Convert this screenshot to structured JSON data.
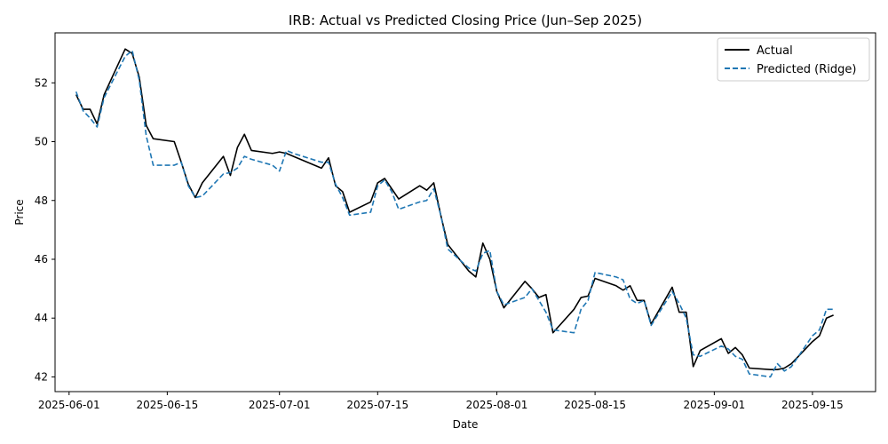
{
  "chart_data": {
    "type": "line",
    "title": "IRB: Actual vs Predicted Closing Price (Jun–Sep 2025)",
    "xlabel": "Date",
    "ylabel": "Price",
    "x_ticks": [
      "2025-06-01",
      "2025-06-15",
      "2025-07-01",
      "2025-07-15",
      "2025-08-01",
      "2025-08-15",
      "2025-09-01",
      "2025-09-15"
    ],
    "y_ticks": [
      42,
      44,
      46,
      48,
      50,
      52
    ],
    "xlim": [
      "2025-05-30",
      "2025-09-24"
    ],
    "ylim": [
      41.5,
      53.7
    ],
    "grid": false,
    "legend_position": "top-right",
    "colors": {
      "actual": "#000000",
      "predicted": "#1f77b4"
    },
    "series": [
      {
        "name": "Actual",
        "style": "solid",
        "points": [
          [
            "2025-06-02",
            51.6
          ],
          [
            "2025-06-03",
            51.1
          ],
          [
            "2025-06-04",
            51.1
          ],
          [
            "2025-06-05",
            50.6
          ],
          [
            "2025-06-06",
            51.6
          ],
          [
            "2025-06-09",
            53.15
          ],
          [
            "2025-06-10",
            53.0
          ],
          [
            "2025-06-11",
            52.2
          ],
          [
            "2025-06-12",
            50.55
          ],
          [
            "2025-06-13",
            50.1
          ],
          [
            "2025-06-16",
            50.0
          ],
          [
            "2025-06-17",
            49.3
          ],
          [
            "2025-06-18",
            48.55
          ],
          [
            "2025-06-19",
            48.1
          ],
          [
            "2025-06-20",
            48.6
          ],
          [
            "2025-06-23",
            49.5
          ],
          [
            "2025-06-24",
            48.85
          ],
          [
            "2025-06-25",
            49.8
          ],
          [
            "2025-06-26",
            50.25
          ],
          [
            "2025-06-27",
            49.7
          ],
          [
            "2025-06-30",
            49.6
          ],
          [
            "2025-07-01",
            49.65
          ],
          [
            "2025-07-02",
            49.6
          ],
          [
            "2025-07-03",
            49.5
          ],
          [
            "2025-07-07",
            49.1
          ],
          [
            "2025-07-08",
            49.45
          ],
          [
            "2025-07-09",
            48.5
          ],
          [
            "2025-07-10",
            48.3
          ],
          [
            "2025-07-11",
            47.6
          ],
          [
            "2025-07-14",
            47.95
          ],
          [
            "2025-07-15",
            48.6
          ],
          [
            "2025-07-16",
            48.75
          ],
          [
            "2025-07-17",
            48.4
          ],
          [
            "2025-07-18",
            48.05
          ],
          [
            "2025-07-21",
            48.5
          ],
          [
            "2025-07-22",
            48.35
          ],
          [
            "2025-07-23",
            48.6
          ],
          [
            "2025-07-24",
            47.5
          ],
          [
            "2025-07-25",
            46.5
          ],
          [
            "2025-07-28",
            45.6
          ],
          [
            "2025-07-29",
            45.4
          ],
          [
            "2025-07-30",
            46.55
          ],
          [
            "2025-07-31",
            46.0
          ],
          [
            "2025-08-01",
            44.9
          ],
          [
            "2025-08-02",
            44.35
          ],
          [
            "2025-08-05",
            45.25
          ],
          [
            "2025-08-06",
            45.0
          ],
          [
            "2025-08-07",
            44.7
          ],
          [
            "2025-08-08",
            44.8
          ],
          [
            "2025-08-09",
            43.5
          ],
          [
            "2025-08-12",
            44.3
          ],
          [
            "2025-08-13",
            44.7
          ],
          [
            "2025-08-14",
            44.75
          ],
          [
            "2025-08-15",
            45.35
          ],
          [
            "2025-08-18",
            45.1
          ],
          [
            "2025-08-19",
            44.95
          ],
          [
            "2025-08-20",
            45.1
          ],
          [
            "2025-08-21",
            44.6
          ],
          [
            "2025-08-22",
            44.6
          ],
          [
            "2025-08-23",
            43.8
          ],
          [
            "2025-08-26",
            45.05
          ],
          [
            "2025-08-27",
            44.2
          ],
          [
            "2025-08-28",
            44.2
          ],
          [
            "2025-08-29",
            42.35
          ],
          [
            "2025-08-30",
            42.9
          ],
          [
            "2025-09-02",
            43.3
          ],
          [
            "2025-09-03",
            42.8
          ],
          [
            "2025-09-04",
            43.0
          ],
          [
            "2025-09-05",
            42.75
          ],
          [
            "2025-09-06",
            42.3
          ],
          [
            "2025-09-09",
            42.25
          ],
          [
            "2025-09-10",
            42.25
          ],
          [
            "2025-09-11",
            42.3
          ],
          [
            "2025-09-12",
            42.45
          ],
          [
            "2025-09-15",
            43.2
          ],
          [
            "2025-09-16",
            43.4
          ],
          [
            "2025-09-17",
            44.0
          ],
          [
            "2025-09-18",
            44.1
          ]
        ]
      },
      {
        "name": "Predicted (Ridge)",
        "style": "dashed",
        "points": [
          [
            "2025-06-02",
            51.7
          ],
          [
            "2025-06-03",
            51.05
          ],
          [
            "2025-06-04",
            50.8
          ],
          [
            "2025-06-05",
            50.5
          ],
          [
            "2025-06-06",
            51.5
          ],
          [
            "2025-06-09",
            52.9
          ],
          [
            "2025-06-10",
            53.1
          ],
          [
            "2025-06-11",
            52.1
          ],
          [
            "2025-06-12",
            50.2
          ],
          [
            "2025-06-13",
            49.2
          ],
          [
            "2025-06-16",
            49.2
          ],
          [
            "2025-06-17",
            49.3
          ],
          [
            "2025-06-18",
            48.5
          ],
          [
            "2025-06-19",
            48.1
          ],
          [
            "2025-06-20",
            48.15
          ],
          [
            "2025-06-23",
            48.9
          ],
          [
            "2025-06-24",
            48.95
          ],
          [
            "2025-06-25",
            49.1
          ],
          [
            "2025-06-26",
            49.5
          ],
          [
            "2025-06-27",
            49.4
          ],
          [
            "2025-06-30",
            49.2
          ],
          [
            "2025-07-01",
            49.0
          ],
          [
            "2025-07-02",
            49.7
          ],
          [
            "2025-07-03",
            49.6
          ],
          [
            "2025-07-07",
            49.3
          ],
          [
            "2025-07-08",
            49.3
          ],
          [
            "2025-07-09",
            48.55
          ],
          [
            "2025-07-10",
            48.1
          ],
          [
            "2025-07-11",
            47.5
          ],
          [
            "2025-07-14",
            47.6
          ],
          [
            "2025-07-15",
            48.5
          ],
          [
            "2025-07-16",
            48.7
          ],
          [
            "2025-07-17",
            48.3
          ],
          [
            "2025-07-18",
            47.7
          ],
          [
            "2025-07-21",
            47.95
          ],
          [
            "2025-07-22",
            48.0
          ],
          [
            "2025-07-23",
            48.4
          ],
          [
            "2025-07-24",
            47.5
          ],
          [
            "2025-07-25",
            46.35
          ],
          [
            "2025-07-28",
            45.7
          ],
          [
            "2025-07-29",
            45.6
          ],
          [
            "2025-07-30",
            46.2
          ],
          [
            "2025-07-31",
            46.3
          ],
          [
            "2025-08-01",
            44.9
          ],
          [
            "2025-08-02",
            44.45
          ],
          [
            "2025-08-05",
            44.7
          ],
          [
            "2025-08-06",
            45.0
          ],
          [
            "2025-08-07",
            44.6
          ],
          [
            "2025-08-08",
            44.2
          ],
          [
            "2025-08-09",
            43.6
          ],
          [
            "2025-08-12",
            43.5
          ],
          [
            "2025-08-13",
            44.3
          ],
          [
            "2025-08-14",
            44.6
          ],
          [
            "2025-08-15",
            45.55
          ],
          [
            "2025-08-18",
            45.4
          ],
          [
            "2025-08-19",
            45.3
          ],
          [
            "2025-08-20",
            44.65
          ],
          [
            "2025-08-21",
            44.5
          ],
          [
            "2025-08-22",
            44.6
          ],
          [
            "2025-08-23",
            43.75
          ],
          [
            "2025-08-26",
            44.9
          ],
          [
            "2025-08-27",
            44.5
          ],
          [
            "2025-08-28",
            44.0
          ],
          [
            "2025-08-29",
            42.75
          ],
          [
            "2025-08-30",
            42.7
          ],
          [
            "2025-09-02",
            43.05
          ],
          [
            "2025-09-03",
            42.95
          ],
          [
            "2025-09-04",
            42.7
          ],
          [
            "2025-09-05",
            42.6
          ],
          [
            "2025-09-06",
            42.1
          ],
          [
            "2025-09-09",
            42.0
          ],
          [
            "2025-09-10",
            42.45
          ],
          [
            "2025-09-11",
            42.2
          ],
          [
            "2025-09-12",
            42.35
          ],
          [
            "2025-09-15",
            43.4
          ],
          [
            "2025-09-16",
            43.6
          ],
          [
            "2025-09-17",
            44.3
          ],
          [
            "2025-09-18",
            44.3
          ]
        ]
      }
    ]
  }
}
